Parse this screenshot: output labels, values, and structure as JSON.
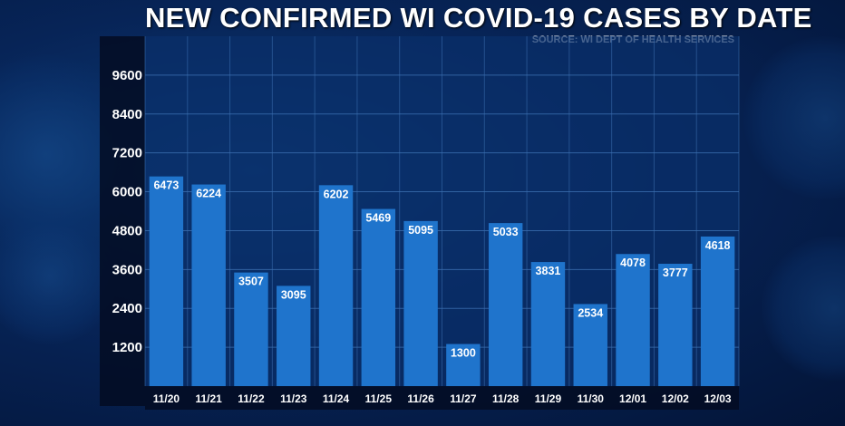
{
  "header": {
    "title": "NEW CONFIRMED WI COVID-19 CASES BY DATE",
    "source": "SOURCE: WI DEPT OF HEALTH SERVICES"
  },
  "colors": {
    "bar": "#1f74cc",
    "plot_bg": "#0a2f6a",
    "grid": "#3b6fb0",
    "text": "#ffffff"
  },
  "chart_data": {
    "type": "bar",
    "title": "NEW CONFIRMED WI COVID-19 CASES BY DATE",
    "subtitle": "SOURCE: WI DEPT OF HEALTH SERVICES",
    "categories": [
      "11/20",
      "11/21",
      "11/22",
      "11/23",
      "11/24",
      "11/25",
      "11/26",
      "11/27",
      "11/28",
      "11/29",
      "11/30",
      "12/01",
      "12/02",
      "12/03"
    ],
    "values": [
      6473,
      6224,
      3507,
      3095,
      6202,
      5469,
      5095,
      1300,
      5033,
      3831,
      2534,
      4078,
      3777,
      4618
    ],
    "data_labels": [
      "6473",
      "6224",
      "3507",
      "3095",
      "6202",
      "5469",
      "5095",
      "1300",
      "5033",
      "3831",
      "2534",
      "4078",
      "3777",
      "4618"
    ],
    "yticks": [
      1200,
      2400,
      3600,
      4800,
      6000,
      7200,
      8400,
      9600
    ],
    "ytick_labels": [
      "1200",
      "2400",
      "3600",
      "4800",
      "6000",
      "7200",
      "8400",
      "9600"
    ],
    "ylim": [
      0,
      10800
    ],
    "xlabel": "",
    "ylabel": "",
    "grid": true,
    "legend": "none"
  }
}
